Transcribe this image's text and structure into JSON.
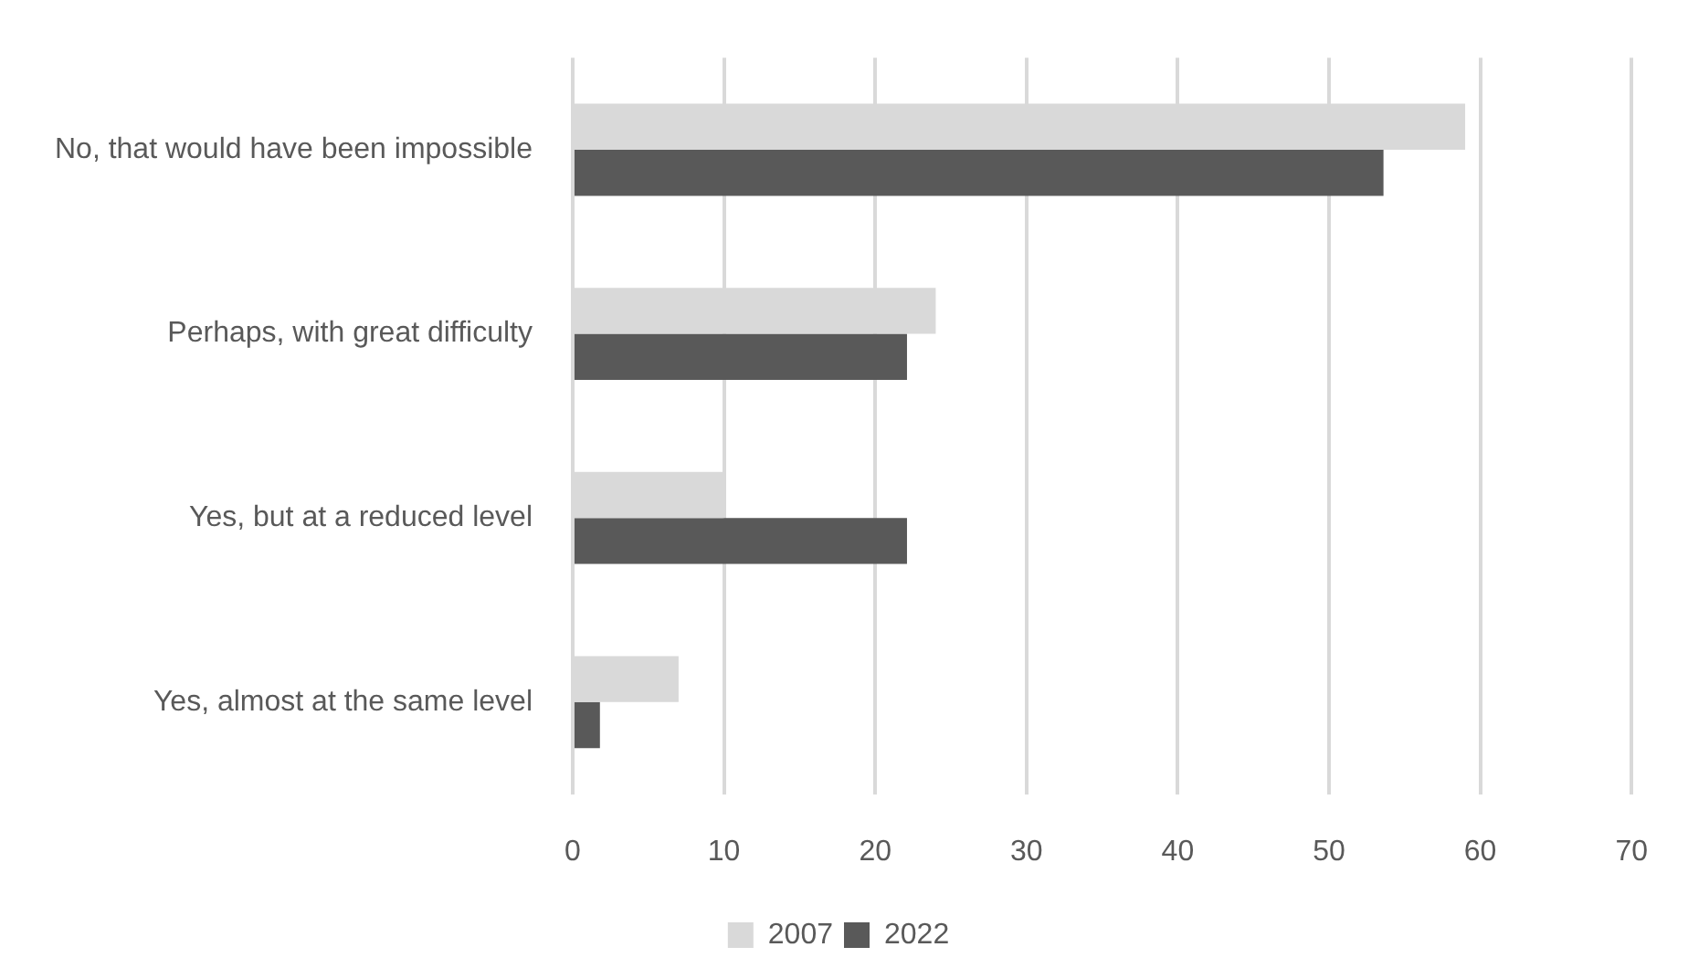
{
  "chart_data": {
    "type": "bar",
    "orientation": "horizontal",
    "categories": [
      "No, that would have been impossible",
      "Perhaps, with great difficulty",
      "Yes, but at a reduced level",
      "Yes, almost at the same level"
    ],
    "series": [
      {
        "name": "2007",
        "color": "#d9d9d9",
        "values": [
          59,
          24,
          10,
          7
        ]
      },
      {
        "name": "2022",
        "color": "#595959",
        "values": [
          53.6,
          22.1,
          22.1,
          1.8
        ]
      }
    ],
    "xlim": [
      0,
      70
    ],
    "xticks": [
      0,
      10,
      20,
      30,
      40,
      50,
      60,
      70
    ],
    "grid": "x",
    "legend": "bottom"
  }
}
